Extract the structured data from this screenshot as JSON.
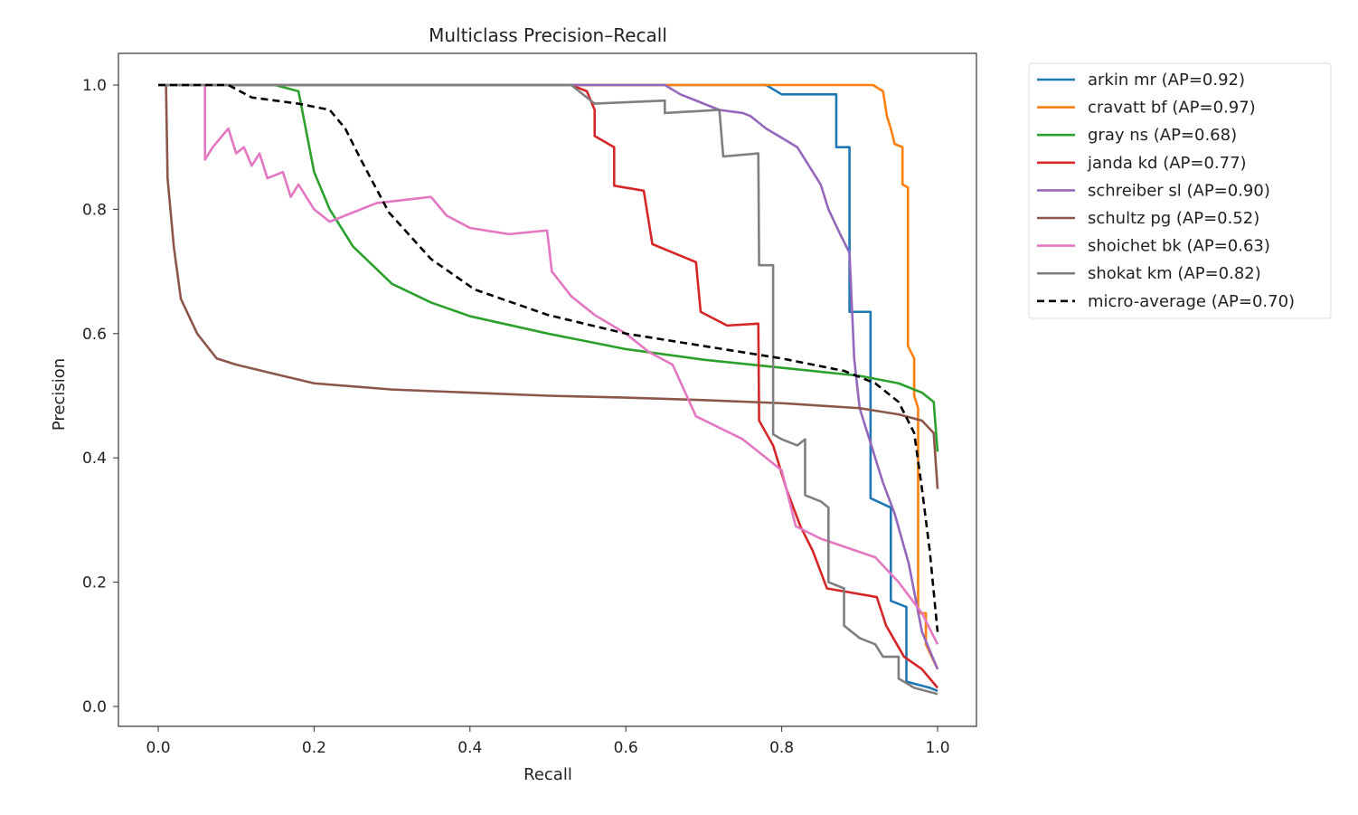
{
  "chart_data": {
    "type": "line",
    "title": "Multiclass Precision–Recall",
    "xlabel": "Recall",
    "ylabel": "Precision",
    "xlim": [
      -0.05,
      1.05
    ],
    "ylim": [
      -0.03,
      1.05
    ],
    "xticks": [
      "0.0",
      "0.2",
      "0.4",
      "0.6",
      "0.8",
      "1.0"
    ],
    "yticks": [
      "0.0",
      "0.2",
      "0.4",
      "0.6",
      "0.8",
      "1.0"
    ],
    "grid": false,
    "legend_position": "outside-top-right",
    "series": [
      {
        "name": "arkin mr (AP=0.92)",
        "color": "#1f77b4",
        "dash": false,
        "points": [
          [
            0,
            1
          ],
          [
            0.78,
            1
          ],
          [
            0.8,
            0.985
          ],
          [
            0.87,
            0.985
          ],
          [
            0.87,
            0.9
          ],
          [
            0.887,
            0.9
          ],
          [
            0.887,
            0.635
          ],
          [
            0.914,
            0.635
          ],
          [
            0.914,
            0.335
          ],
          [
            0.94,
            0.32
          ],
          [
            0.94,
            0.17
          ],
          [
            0.96,
            0.16
          ],
          [
            0.96,
            0.04
          ],
          [
            0.99,
            0.03
          ],
          [
            1.0,
            0.025
          ]
        ]
      },
      {
        "name": "cravatt bf (AP=0.97)",
        "color": "#ff7f0e",
        "dash": false,
        "points": [
          [
            0,
            1
          ],
          [
            0.917,
            1
          ],
          [
            0.93,
            0.99
          ],
          [
            0.935,
            0.95
          ],
          [
            0.94,
            0.93
          ],
          [
            0.945,
            0.905
          ],
          [
            0.955,
            0.9
          ],
          [
            0.955,
            0.84
          ],
          [
            0.962,
            0.835
          ],
          [
            0.962,
            0.58
          ],
          [
            0.97,
            0.56
          ],
          [
            0.97,
            0.5
          ],
          [
            0.975,
            0.48
          ],
          [
            0.975,
            0.15
          ],
          [
            0.985,
            0.15
          ],
          [
            0.985,
            0.1
          ],
          [
            1.0,
            0.06
          ]
        ]
      },
      {
        "name": "gray ns (AP=0.68)",
        "color": "#2ca02c",
        "dash": false,
        "points": [
          [
            0.15,
            1
          ],
          [
            0.18,
            0.99
          ],
          [
            0.2,
            0.86
          ],
          [
            0.22,
            0.8
          ],
          [
            0.25,
            0.74
          ],
          [
            0.3,
            0.68
          ],
          [
            0.35,
            0.65
          ],
          [
            0.4,
            0.628
          ],
          [
            0.5,
            0.6
          ],
          [
            0.6,
            0.575
          ],
          [
            0.7,
            0.558
          ],
          [
            0.8,
            0.545
          ],
          [
            0.9,
            0.532
          ],
          [
            0.95,
            0.52
          ],
          [
            0.98,
            0.505
          ],
          [
            0.995,
            0.49
          ],
          [
            1.0,
            0.41
          ]
        ]
      },
      {
        "name": "janda kd (AP=0.77)",
        "color": "#d62728",
        "dash": false,
        "points": [
          [
            0.53,
            1
          ],
          [
            0.55,
            0.99
          ],
          [
            0.56,
            0.96
          ],
          [
            0.56,
            0.918
          ],
          [
            0.585,
            0.9
          ],
          [
            0.585,
            0.838
          ],
          [
            0.623,
            0.83
          ],
          [
            0.634,
            0.744
          ],
          [
            0.69,
            0.715
          ],
          [
            0.696,
            0.635
          ],
          [
            0.73,
            0.613
          ],
          [
            0.77,
            0.616
          ],
          [
            0.771,
            0.46
          ],
          [
            0.789,
            0.42
          ],
          [
            0.806,
            0.35
          ],
          [
            0.824,
            0.29
          ],
          [
            0.84,
            0.25
          ],
          [
            0.858,
            0.19
          ],
          [
            0.922,
            0.176
          ],
          [
            0.934,
            0.13
          ],
          [
            0.957,
            0.08
          ],
          [
            0.98,
            0.06
          ],
          [
            1.0,
            0.03
          ]
        ]
      },
      {
        "name": "schreiber sl (AP=0.90)",
        "color": "#9467bd",
        "dash": false,
        "points": [
          [
            0,
            1
          ],
          [
            0.65,
            1
          ],
          [
            0.67,
            0.985
          ],
          [
            0.7,
            0.97
          ],
          [
            0.72,
            0.96
          ],
          [
            0.75,
            0.955
          ],
          [
            0.76,
            0.95
          ],
          [
            0.78,
            0.93
          ],
          [
            0.8,
            0.915
          ],
          [
            0.82,
            0.9
          ],
          [
            0.835,
            0.87
          ],
          [
            0.85,
            0.84
          ],
          [
            0.86,
            0.8
          ],
          [
            0.875,
            0.76
          ],
          [
            0.887,
            0.73
          ],
          [
            0.893,
            0.56
          ],
          [
            0.9,
            0.48
          ],
          [
            0.91,
            0.44
          ],
          [
            0.93,
            0.36
          ],
          [
            0.945,
            0.31
          ],
          [
            0.963,
            0.23
          ],
          [
            0.98,
            0.12
          ],
          [
            1.0,
            0.06
          ]
        ]
      },
      {
        "name": "schultz pg (AP=0.52)",
        "color": "#8c564b",
        "dash": false,
        "points": [
          [
            0.01,
            1
          ],
          [
            0.012,
            0.85
          ],
          [
            0.02,
            0.74
          ],
          [
            0.029,
            0.656
          ],
          [
            0.05,
            0.6
          ],
          [
            0.075,
            0.56
          ],
          [
            0.1,
            0.55
          ],
          [
            0.15,
            0.535
          ],
          [
            0.2,
            0.52
          ],
          [
            0.3,
            0.51
          ],
          [
            0.4,
            0.505
          ],
          [
            0.5,
            0.5
          ],
          [
            0.6,
            0.497
          ],
          [
            0.7,
            0.493
          ],
          [
            0.8,
            0.488
          ],
          [
            0.9,
            0.48
          ],
          [
            0.95,
            0.47
          ],
          [
            0.98,
            0.46
          ],
          [
            0.995,
            0.44
          ],
          [
            1.0,
            0.35
          ]
        ]
      },
      {
        "name": "shoichet bk (AP=0.63)",
        "color": "#e377c2",
        "dash": false,
        "points": [
          [
            0.06,
            1
          ],
          [
            0.06,
            0.88
          ],
          [
            0.07,
            0.9
          ],
          [
            0.09,
            0.93
          ],
          [
            0.1,
            0.89
          ],
          [
            0.11,
            0.9
          ],
          [
            0.12,
            0.87
          ],
          [
            0.13,
            0.89
          ],
          [
            0.14,
            0.85
          ],
          [
            0.16,
            0.86
          ],
          [
            0.17,
            0.82
          ],
          [
            0.18,
            0.84
          ],
          [
            0.2,
            0.8
          ],
          [
            0.21,
            0.79
          ],
          [
            0.22,
            0.78
          ],
          [
            0.24,
            0.79
          ],
          [
            0.28,
            0.81
          ],
          [
            0.35,
            0.82
          ],
          [
            0.37,
            0.79
          ],
          [
            0.4,
            0.77
          ],
          [
            0.45,
            0.76
          ],
          [
            0.499,
            0.766
          ],
          [
            0.505,
            0.7
          ],
          [
            0.53,
            0.66
          ],
          [
            0.56,
            0.63
          ],
          [
            0.6,
            0.6
          ],
          [
            0.63,
            0.57
          ],
          [
            0.66,
            0.55
          ],
          [
            0.69,
            0.467
          ],
          [
            0.75,
            0.43
          ],
          [
            0.8,
            0.38
          ],
          [
            0.818,
            0.29
          ],
          [
            0.85,
            0.27
          ],
          [
            0.92,
            0.24
          ],
          [
            0.95,
            0.2
          ],
          [
            0.98,
            0.15
          ],
          [
            1.0,
            0.1
          ]
        ]
      },
      {
        "name": "shokat km (AP=0.82)",
        "color": "#7f7f7f",
        "dash": false,
        "points": [
          [
            0,
            1
          ],
          [
            0.53,
            1
          ],
          [
            0.56,
            0.97
          ],
          [
            0.65,
            0.975
          ],
          [
            0.65,
            0.955
          ],
          [
            0.72,
            0.96
          ],
          [
            0.725,
            0.885
          ],
          [
            0.77,
            0.89
          ],
          [
            0.771,
            0.71
          ],
          [
            0.789,
            0.71
          ],
          [
            0.789,
            0.438
          ],
          [
            0.8,
            0.43
          ],
          [
            0.82,
            0.42
          ],
          [
            0.83,
            0.43
          ],
          [
            0.83,
            0.34
          ],
          [
            0.85,
            0.33
          ],
          [
            0.86,
            0.32
          ],
          [
            0.86,
            0.2
          ],
          [
            0.88,
            0.19
          ],
          [
            0.88,
            0.13
          ],
          [
            0.9,
            0.11
          ],
          [
            0.92,
            0.1
          ],
          [
            0.93,
            0.08
          ],
          [
            0.95,
            0.08
          ],
          [
            0.95,
            0.045
          ],
          [
            0.97,
            0.03
          ],
          [
            1.0,
            0.02
          ]
        ]
      },
      {
        "name": "micro-average (AP=0.70)",
        "color": "#000000",
        "dash": true,
        "points": [
          [
            0,
            1
          ],
          [
            0.09,
            1
          ],
          [
            0.12,
            0.98
          ],
          [
            0.18,
            0.97
          ],
          [
            0.22,
            0.96
          ],
          [
            0.24,
            0.93
          ],
          [
            0.26,
            0.88
          ],
          [
            0.296,
            0.795
          ],
          [
            0.35,
            0.72
          ],
          [
            0.406,
            0.671
          ],
          [
            0.5,
            0.63
          ],
          [
            0.6,
            0.6
          ],
          [
            0.7,
            0.58
          ],
          [
            0.8,
            0.56
          ],
          [
            0.88,
            0.54
          ],
          [
            0.92,
            0.52
          ],
          [
            0.95,
            0.49
          ],
          [
            0.97,
            0.44
          ],
          [
            0.98,
            0.35
          ],
          [
            0.99,
            0.25
          ],
          [
            1.0,
            0.12
          ]
        ]
      }
    ]
  }
}
